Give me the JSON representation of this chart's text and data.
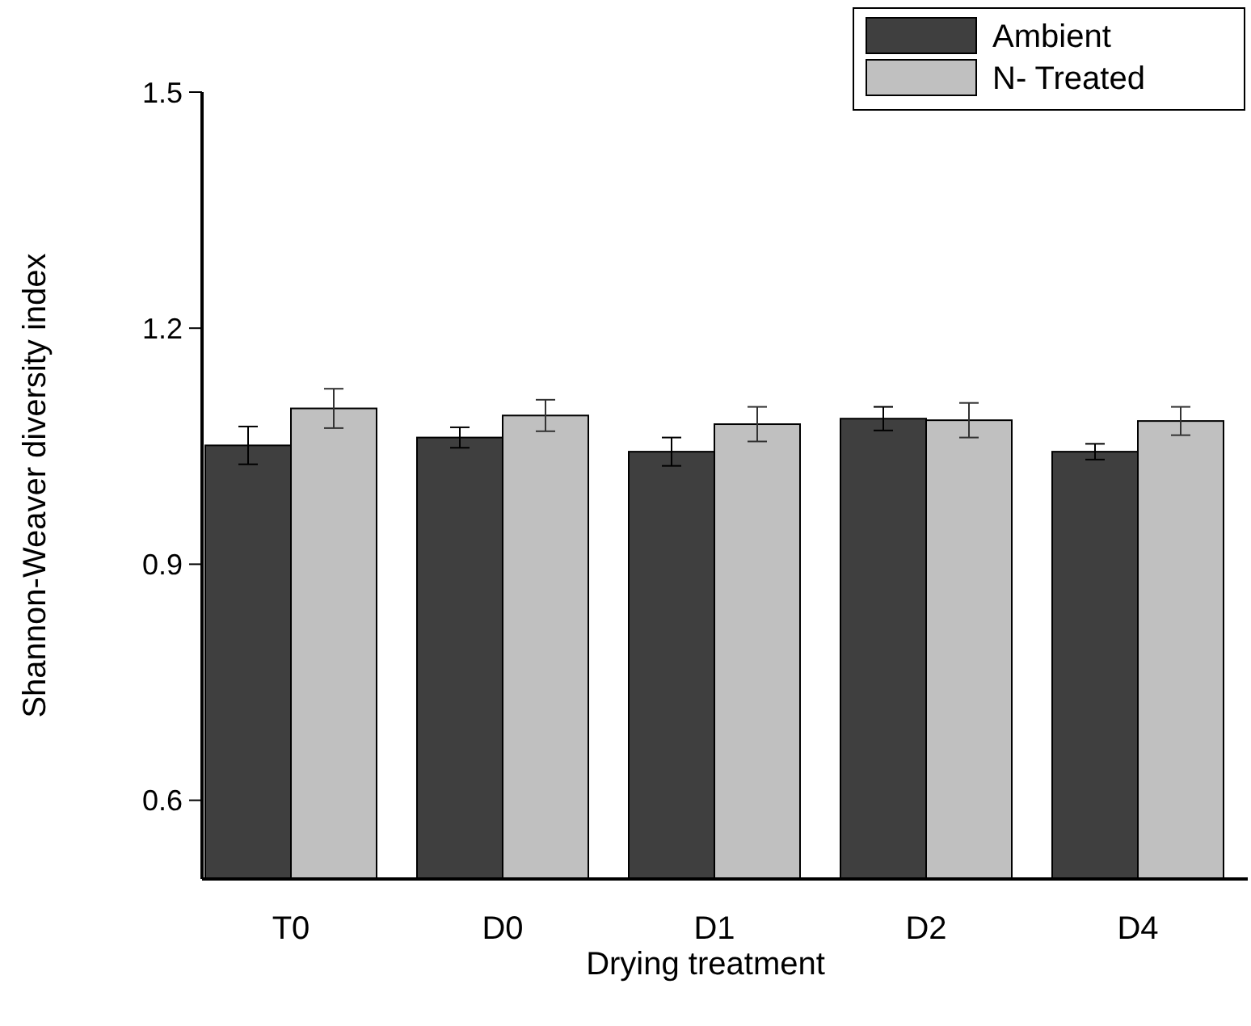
{
  "chart_data": {
    "type": "bar",
    "xlabel": "Drying treatment",
    "ylabel": "Shannon-Weaver diversity index",
    "categories": [
      "T0",
      "D0",
      "D1",
      "D2",
      "D4"
    ],
    "series": [
      {
        "name": "Ambient",
        "color": "#3f3f3f",
        "values": [
          1.051,
          1.061,
          1.043,
          1.085,
          1.043
        ],
        "errors": [
          0.024,
          0.013,
          0.018,
          0.015,
          0.01
        ]
      },
      {
        "name": "N- Treated",
        "color": "#c0c0c0",
        "values": [
          1.098,
          1.089,
          1.078,
          1.083,
          1.082
        ],
        "errors": [
          0.025,
          0.02,
          0.022,
          0.022,
          0.018
        ]
      }
    ],
    "ylim": [
      0.5,
      1.5
    ],
    "yticks": [
      0.6,
      0.9,
      1.2,
      1.5
    ],
    "grid": false,
    "legend": "top right"
  }
}
